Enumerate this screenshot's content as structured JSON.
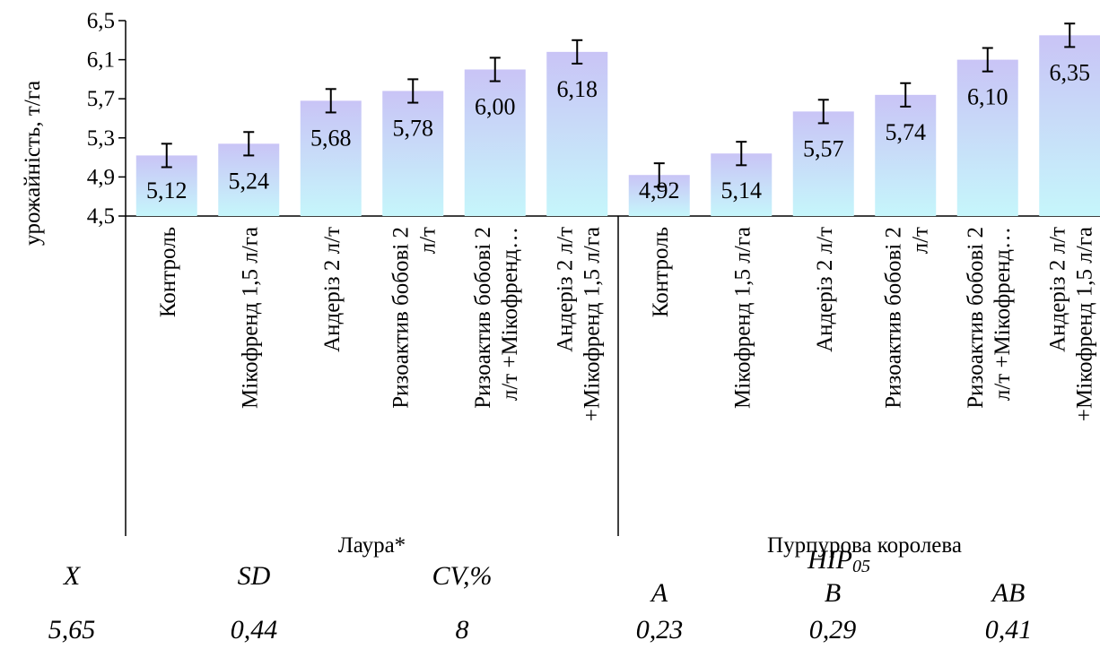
{
  "chart_data": {
    "type": "bar",
    "ylabel": "урожайність, т/га",
    "ylim": [
      4.5,
      6.5
    ],
    "yticks": [
      "4,5",
      "4,9",
      "5,3",
      "5,7",
      "6,1",
      "6,5"
    ],
    "groups": [
      {
        "name": "Лаура*",
        "categories": [
          [
            "Контроль"
          ],
          [
            "Мікофренд 1,5 л/га"
          ],
          [
            "Андеріз 2 л/т"
          ],
          [
            "Ризоактив бобові 2",
            "л/т"
          ],
          [
            "Ризоактив бобові 2",
            "л/т +Мікофренд…"
          ],
          [
            "Андеріз 2 л/т",
            "+Мікофренд 1,5 л/га"
          ]
        ],
        "values": [
          5.12,
          5.24,
          5.68,
          5.78,
          6.0,
          6.18
        ],
        "labels": [
          "5,12",
          "5,24",
          "5,68",
          "5,78",
          "6,00",
          "6,18"
        ]
      },
      {
        "name": "Пурпурова королева",
        "categories": [
          [
            "Контроль"
          ],
          [
            "Мікофренд 1,5 л/га"
          ],
          [
            "Андеріз 2 л/т"
          ],
          [
            "Ризоактив бобові 2",
            "л/т"
          ],
          [
            "Ризоактив бобові 2",
            "л/т +Мікофренд…"
          ],
          [
            "Андеріз 2 л/т",
            "+Мікофренд 1,5 л/га"
          ]
        ],
        "values": [
          4.92,
          5.14,
          5.57,
          5.74,
          6.1,
          6.35
        ],
        "labels": [
          "4,92",
          "5,14",
          "5,57",
          "5,74",
          "6,10",
          "6,35"
        ]
      }
    ],
    "error": 0.12,
    "colors": {
      "bar_top": "#c9c4f6",
      "bar_bottom": "#c6f6fb",
      "axis": "#000000"
    }
  },
  "stats": {
    "x_label": "X",
    "x_value": "5,65",
    "sd_label": "SD",
    "sd_value": "0,44",
    "cv_label": "CV,%",
    "cv_value": "8",
    "hip_label": "HIP",
    "hip_sub": "05",
    "a_label": "A",
    "a_value": "0,23",
    "b_label": "B",
    "b_value": "0,29",
    "ab_label": "AB",
    "ab_value": "0,41"
  }
}
